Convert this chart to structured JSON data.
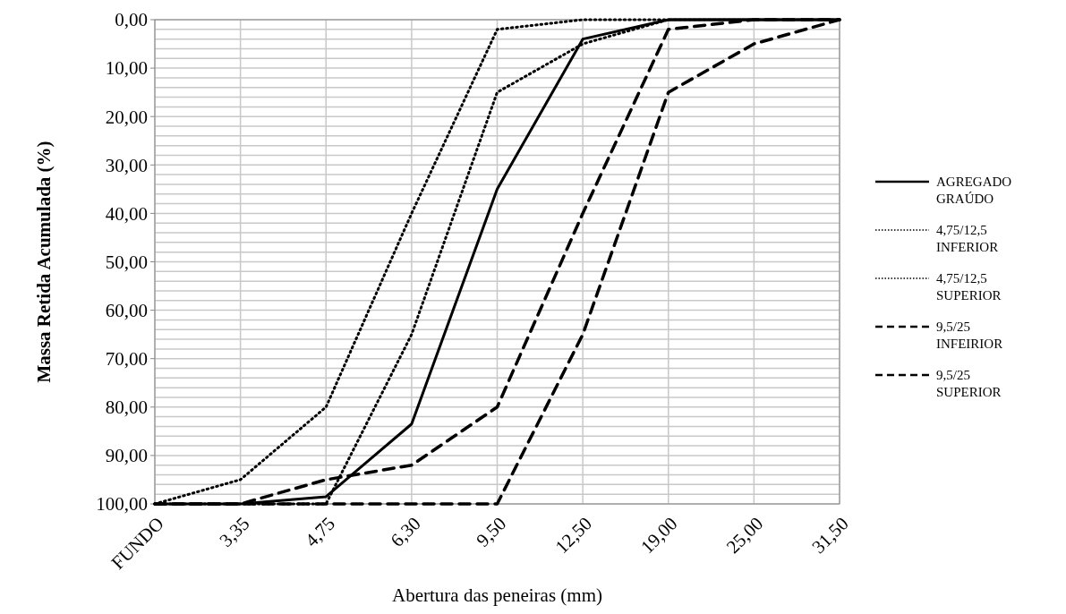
{
  "chart_data": {
    "type": "line",
    "xlabel": "Abertura das peneiras (mm)",
    "ylabel": "Massa Retida Acumulada (%)",
    "categories": [
      "FUNDO",
      "3,35",
      "4,75",
      "6,30",
      "9,50",
      "12,50",
      "19,00",
      "25,00",
      "31,50"
    ],
    "ylim": [
      100,
      0
    ],
    "yticks": [
      {
        "value": 0,
        "label": "0,00"
      },
      {
        "value": 2,
        "label": null
      },
      {
        "value": 4,
        "label": null
      },
      {
        "value": 6,
        "label": null
      },
      {
        "value": 8,
        "label": null
      },
      {
        "value": 10,
        "label": "10,00"
      },
      {
        "value": 12,
        "label": null
      },
      {
        "value": 14,
        "label": null
      },
      {
        "value": 16,
        "label": null
      },
      {
        "value": 18,
        "label": null
      },
      {
        "value": 20,
        "label": "20,00"
      },
      {
        "value": 22,
        "label": null
      },
      {
        "value": 24,
        "label": null
      },
      {
        "value": 26,
        "label": null
      },
      {
        "value": 28,
        "label": null
      },
      {
        "value": 30,
        "label": "30,00"
      },
      {
        "value": 32,
        "label": null
      },
      {
        "value": 34,
        "label": null
      },
      {
        "value": 36,
        "label": null
      },
      {
        "value": 38,
        "label": null
      },
      {
        "value": 40,
        "label": "40,00"
      },
      {
        "value": 42,
        "label": null
      },
      {
        "value": 44,
        "label": null
      },
      {
        "value": 46,
        "label": null
      },
      {
        "value": 48,
        "label": null
      },
      {
        "value": 50,
        "label": "50,00"
      },
      {
        "value": 52,
        "label": null
      },
      {
        "value": 54,
        "label": null
      },
      {
        "value": 56,
        "label": null
      },
      {
        "value": 58,
        "label": null
      },
      {
        "value": 60,
        "label": "60,00"
      },
      {
        "value": 62,
        "label": null
      },
      {
        "value": 64,
        "label": null
      },
      {
        "value": 66,
        "label": null
      },
      {
        "value": 68,
        "label": null
      },
      {
        "value": 70,
        "label": "70,00"
      },
      {
        "value": 72,
        "label": null
      },
      {
        "value": 74,
        "label": null
      },
      {
        "value": 76,
        "label": null
      },
      {
        "value": 78,
        "label": null
      },
      {
        "value": 80,
        "label": "80,00"
      },
      {
        "value": 82,
        "label": null
      },
      {
        "value": 84,
        "label": null
      },
      {
        "value": 86,
        "label": null
      },
      {
        "value": 88,
        "label": null
      },
      {
        "value": 90,
        "label": "90,00"
      },
      {
        "value": 92,
        "label": null
      },
      {
        "value": 94,
        "label": null
      },
      {
        "value": 96,
        "label": null
      },
      {
        "value": 98,
        "label": null
      },
      {
        "value": 100,
        "label": "100,00"
      }
    ],
    "grid": true,
    "legend": "right",
    "marker": "none",
    "series": [
      {
        "name": "AGREGADO GRAÚDO",
        "color": "#000000",
        "line_style": "solid",
        "values": [
          100,
          100,
          98.5,
          83.5,
          35,
          4,
          0,
          0,
          0
        ]
      },
      {
        "name": "4,75/12,5 INFERIOR",
        "color": "#000000",
        "line_style": "dotted",
        "values": [
          100,
          95,
          80,
          40,
          2,
          0,
          0,
          0,
          0
        ]
      },
      {
        "name": "4,75/12,5 SUPERIOR",
        "color": "#000000",
        "line_style": "dotted",
        "values": [
          100,
          100,
          100,
          65,
          15,
          5,
          0,
          0,
          0
        ]
      },
      {
        "name": "9,5/25 INFEIRIOR",
        "color": "#000000",
        "line_style": "dashed",
        "values": [
          100,
          100,
          95,
          92,
          80,
          40,
          2,
          0,
          0
        ]
      },
      {
        "name": "9,5/25 SUPERIOR",
        "color": "#000000",
        "line_style": "dashed",
        "values": [
          100,
          100,
          100,
          100,
          100,
          65,
          15,
          5,
          0
        ]
      }
    ]
  }
}
